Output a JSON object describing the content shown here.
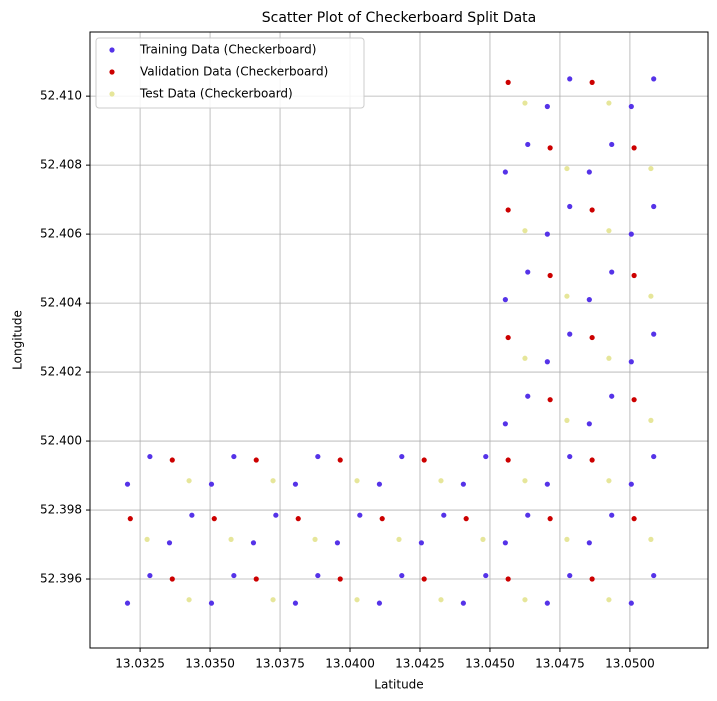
{
  "chart_data": {
    "type": "scatter",
    "title": "Scatter Plot of Checkerboard Split Data",
    "x_label": "Latitude",
    "y_label": "Longitude",
    "xlim": [
      13.03071,
      13.05279
    ],
    "ylim": [
      52.394,
      52.41186
    ],
    "xticks": [
      13.0325,
      {
        "value": 13.035,
        "label": "13.0350"
      },
      13.0375,
      {
        "value": 13.04,
        "label": "13.0400"
      },
      13.0425,
      {
        "value": 13.045,
        "label": "13.0450"
      },
      13.0475,
      {
        "value": 13.05,
        "label": "13.0500"
      }
    ],
    "yticks": [
      52.396,
      52.398,
      {
        "value": 52.4,
        "label": "52.400"
      },
      52.402,
      52.404,
      52.406,
      52.408,
      {
        "value": 52.41,
        "label": "52.410"
      }
    ],
    "grid": true,
    "legend": "upper left",
    "series": [
      {
        "name": "Training Data (Checkerboard)",
        "color": "#5533e8",
        "x": [
          13.03205,
          13.03285,
          13.03505,
          13.03585,
          13.03805,
          13.03885,
          13.04105,
          13.04185,
          13.04405,
          13.04485,
          13.04705,
          13.04785,
          13.05005,
          13.05085,
          13.03355,
          13.03435,
          13.03655,
          13.03735,
          13.03955,
          13.04035,
          13.04255,
          13.04335,
          13.04555,
          13.04635,
          13.04855,
          13.04935,
          13.03205,
          13.03285,
          13.03505,
          13.03585,
          13.03805,
          13.03885,
          13.04105,
          13.04185,
          13.04405,
          13.04485,
          13.04705,
          13.04785,
          13.05005,
          13.05085,
          13.04555,
          13.04635,
          13.04855,
          13.04935,
          13.04705,
          13.04785,
          13.05005,
          13.05085,
          13.04555,
          13.04635,
          13.04855,
          13.04935,
          13.04705,
          13.04785,
          13.05005,
          13.05085,
          13.04555,
          13.04635,
          13.04855,
          13.04935,
          13.04705,
          13.04785,
          13.05005,
          13.05085
        ],
        "y": [
          52.3953,
          52.3961,
          52.3953,
          52.3961,
          52.3953,
          52.3961,
          52.3953,
          52.3961,
          52.3953,
          52.3961,
          52.3953,
          52.3961,
          52.3953,
          52.3961,
          52.39705,
          52.39785,
          52.39705,
          52.39785,
          52.39705,
          52.39785,
          52.39705,
          52.39785,
          52.39705,
          52.39785,
          52.39705,
          52.39785,
          52.39875,
          52.39955,
          52.39875,
          52.39955,
          52.39875,
          52.39955,
          52.39875,
          52.39955,
          52.39875,
          52.39955,
          52.39875,
          52.39955,
          52.39875,
          52.39955,
          52.4005,
          52.4013,
          52.4005,
          52.4013,
          52.4023,
          52.4031,
          52.4023,
          52.4031,
          52.4041,
          52.4049,
          52.4041,
          52.4049,
          52.406,
          52.4068,
          52.406,
          52.4068,
          52.4078,
          52.4086,
          52.4078,
          52.4086,
          52.4097,
          52.4105,
          52.4097,
          52.4105
        ]
      },
      {
        "name": "Validation Data (Checkerboard)",
        "color": "#cc0000",
        "x": [
          13.03365,
          13.03665,
          13.03965,
          13.04265,
          13.04565,
          13.04865,
          13.03215,
          13.03515,
          13.03815,
          13.04115,
          13.04415,
          13.04715,
          13.05015,
          13.03365,
          13.03665,
          13.03965,
          13.04265,
          13.04565,
          13.04865,
          13.04715,
          13.05015,
          13.04565,
          13.04865,
          13.04715,
          13.05015,
          13.04565,
          13.04865,
          13.04715,
          13.05015,
          13.04565,
          13.04865
        ],
        "y": [
          52.396,
          52.396,
          52.396,
          52.396,
          52.396,
          52.396,
          52.39775,
          52.39775,
          52.39775,
          52.39775,
          52.39775,
          52.39775,
          52.39775,
          52.39945,
          52.39945,
          52.39945,
          52.39945,
          52.39945,
          52.39945,
          52.4012,
          52.4012,
          52.403,
          52.403,
          52.4048,
          52.4048,
          52.4067,
          52.4067,
          52.4085,
          52.4085,
          52.4104,
          52.4104
        ]
      },
      {
        "name": "Test Data (Checkerboard)",
        "color": "#e6e69a",
        "x": [
          13.03425,
          13.03725,
          13.04025,
          13.04325,
          13.04625,
          13.04925,
          13.03275,
          13.03575,
          13.03875,
          13.04175,
          13.04475,
          13.04775,
          13.05075,
          13.03425,
          13.03725,
          13.04025,
          13.04325,
          13.04625,
          13.04925,
          13.04775,
          13.05075,
          13.04625,
          13.04925,
          13.04775,
          13.05075,
          13.04625,
          13.04925,
          13.04775,
          13.05075,
          13.04625,
          13.04925
        ],
        "y": [
          52.3954,
          52.3954,
          52.3954,
          52.3954,
          52.3954,
          52.3954,
          52.39715,
          52.39715,
          52.39715,
          52.39715,
          52.39715,
          52.39715,
          52.39715,
          52.39885,
          52.39885,
          52.39885,
          52.39885,
          52.39885,
          52.39885,
          52.4006,
          52.4006,
          52.4024,
          52.4024,
          52.4042,
          52.4042,
          52.4061,
          52.4061,
          52.4079,
          52.4079,
          52.4098,
          52.4098
        ]
      }
    ]
  }
}
